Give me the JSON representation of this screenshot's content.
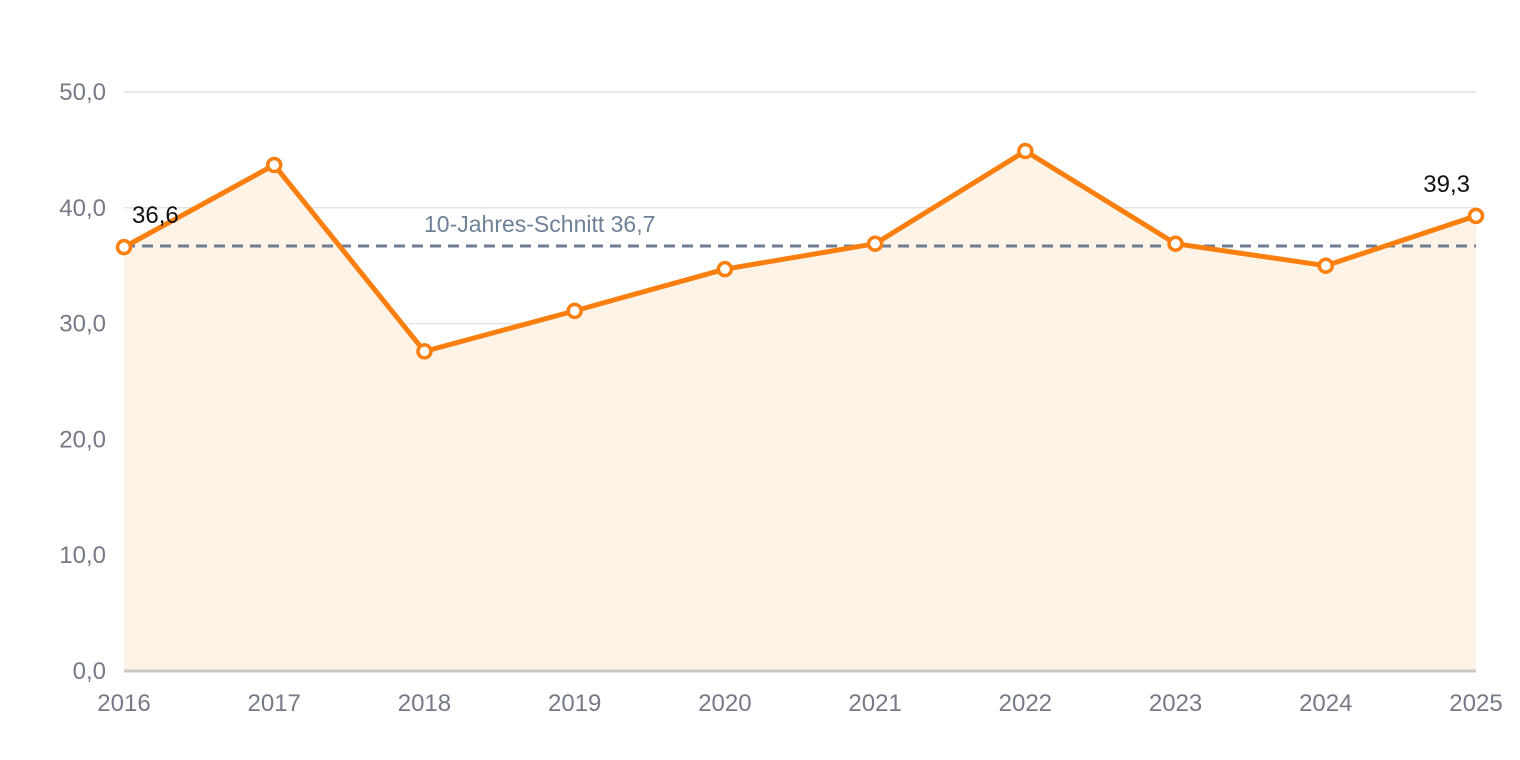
{
  "chart_data": {
    "type": "area",
    "title": "",
    "xlabel": "",
    "ylabel": "",
    "categories": [
      "2016",
      "2017",
      "2018",
      "2019",
      "2020",
      "2021",
      "2022",
      "2023",
      "2024",
      "2025"
    ],
    "series": [
      {
        "values": [
          36.6,
          43.7,
          27.6,
          31.1,
          34.7,
          36.9,
          44.9,
          36.9,
          35.0,
          39.3
        ]
      }
    ],
    "ylim": [
      0,
      50
    ],
    "yticks": [
      "0,0",
      "10,0",
      "20,0",
      "30,0",
      "40,0",
      "50,0"
    ],
    "grid": "horizontal",
    "legend": "none",
    "reference_line": {
      "label": "10-Jahres-Schnitt 36,7",
      "value": 36.7
    },
    "data_labels": [
      {
        "index": 0,
        "text": "36,6"
      },
      {
        "index": 9,
        "text": "39,3"
      }
    ],
    "colors": {
      "line": "#fa7f0f",
      "area": "#fef3e7",
      "reference": "#6e7d91",
      "grid": "#e4e4e4",
      "axis": "#c8c8c8",
      "ticks": "#757a85"
    }
  }
}
